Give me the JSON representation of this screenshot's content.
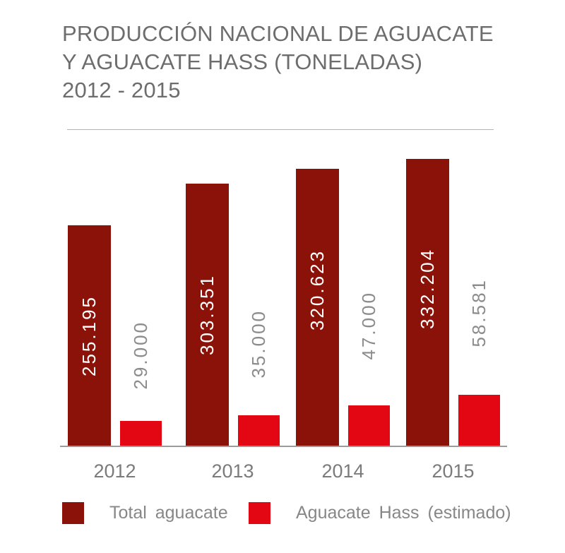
{
  "title": {
    "lines": [
      "PRODUCCIÓN NACIONAL DE AGUACATE",
      "Y AGUACATE HASS (TONELADAS)",
      "2012 - 2015"
    ]
  },
  "chart_data": {
    "type": "bar",
    "title": "PRODUCCIÓN NACIONAL DE AGUACATE Y AGUACATE HASS (TONELADAS) 2012 - 2015",
    "categories": [
      "2012",
      "2013",
      "2014",
      "2015"
    ],
    "series": [
      {
        "name": "Total aguacate",
        "color": "#8B1208",
        "values": [
          255195,
          303351,
          320623,
          332204
        ],
        "labels": [
          "255.195",
          "303.351",
          "320.623",
          "332.204"
        ],
        "label_color": "#ffffff",
        "label_position": "inside-bar-rotated"
      },
      {
        "name": "Aguacate Hass (estimado)",
        "color": "#E30613",
        "values": [
          29000,
          35000,
          47000,
          58581
        ],
        "labels": [
          "29.000",
          "35.000",
          "47.000",
          "58.581"
        ],
        "label_color": "#8c8c8c",
        "label_position": "above-bar-rotated"
      }
    ],
    "xlabel": "",
    "ylabel": "",
    "ylim": [
      0,
      340000
    ],
    "y_axis_visible": false,
    "grid": false,
    "legend_position": "bottom",
    "value_label_rotation": 90
  },
  "legend": {
    "items": [
      {
        "label": "Total aguacate",
        "color": "#8B1208"
      },
      {
        "label": "Aguacate Hass (estimado)",
        "color": "#E30613"
      }
    ]
  }
}
